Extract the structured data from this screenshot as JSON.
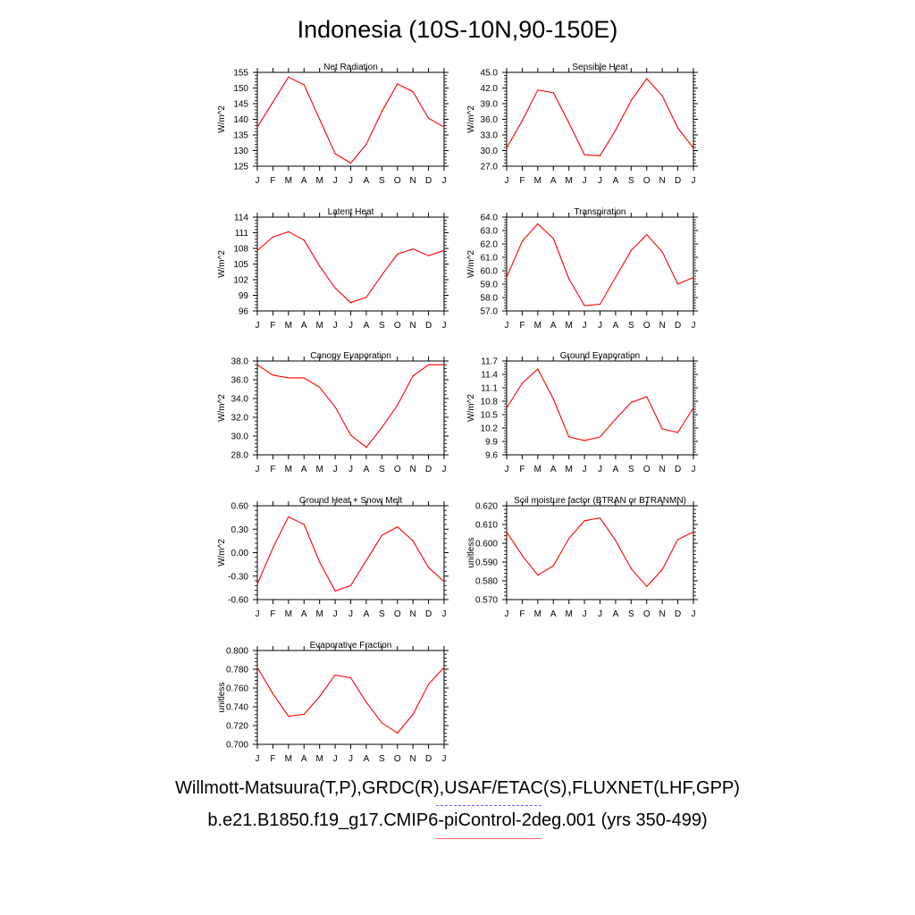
{
  "title": "Indonesia (10S-10N,90-150E)",
  "months": [
    "J",
    "F",
    "M",
    "A",
    "M",
    "J",
    "J",
    "A",
    "S",
    "O",
    "N",
    "D",
    "J"
  ],
  "footer": {
    "obs_sources": "Willmott-Matsuura(T,P),GRDC(R),USAF/ETAC(S),FLUXNET(LHF,GPP)",
    "model_case": "b.e21.B1850.f19_g17.CMIP6-piControl-2deg.001 (yrs 350-499)"
  },
  "colors": {
    "series": "#ff0000",
    "obs_legend": "#6666ff",
    "model_legend": "#ff6666"
  },
  "chart_data": [
    {
      "type": "line",
      "title": "Net Radiation",
      "ylabel": "W/m^2",
      "ylim": [
        125,
        155
      ],
      "yticks": [
        "125",
        "130",
        "135",
        "140",
        "145",
        "150",
        "155"
      ],
      "values": [
        137.5,
        145.5,
        153.5,
        151,
        140,
        129,
        126,
        132,
        142.5,
        151.3,
        148.8,
        140.3,
        137.5
      ]
    },
    {
      "type": "line",
      "title": "Sensible Heat",
      "ylabel": "W/m^2",
      "ylim": [
        27,
        45
      ],
      "yticks": [
        "27.0",
        "30.0",
        "33.0",
        "36.0",
        "39.0",
        "42.0",
        "45.0"
      ],
      "values": [
        30.5,
        35.7,
        41.6,
        41.1,
        35.3,
        29.2,
        29.0,
        33.9,
        39.6,
        43.8,
        40.5,
        34.3,
        30.5
      ]
    },
    {
      "type": "line",
      "title": "Latent Heat",
      "ylabel": "W/m^2",
      "ylim": [
        96,
        114
      ],
      "yticks": [
        "96",
        "99",
        "102",
        "105",
        "108",
        "111",
        "114"
      ],
      "values": [
        107.6,
        110.2,
        111.2,
        109.6,
        104.6,
        100.4,
        97.6,
        98.6,
        102.9,
        106.9,
        107.9,
        106.6,
        107.6
      ]
    },
    {
      "type": "line",
      "title": "Transpiration",
      "ylabel": "W/m^2",
      "ylim": [
        57,
        64
      ],
      "yticks": [
        "57.0",
        "58.0",
        "59.0",
        "60.0",
        "61.0",
        "62.0",
        "63.0",
        "64.0"
      ],
      "values": [
        59.5,
        62.2,
        63.5,
        62.4,
        59.4,
        57.4,
        57.5,
        59.5,
        61.5,
        62.7,
        61.4,
        59.0,
        59.5
      ]
    },
    {
      "type": "line",
      "title": "Canopy Evaporation",
      "ylabel": "W/m^2",
      "ylim": [
        28,
        38
      ],
      "yticks": [
        "28.0",
        "30.0",
        "32.0",
        "34.0",
        "36.0",
        "38.0"
      ],
      "values": [
        37.6,
        36.5,
        36.2,
        36.2,
        35.2,
        33.1,
        30.1,
        28.8,
        30.9,
        33.3,
        36.4,
        37.6,
        37.6
      ]
    },
    {
      "type": "line",
      "title": "Ground Evaporation",
      "ylabel": "W/m^2",
      "ylim": [
        9.6,
        11.7
      ],
      "yticks": [
        "9.6",
        "9.9",
        "10.2",
        "10.5",
        "10.8",
        "11.1",
        "11.4",
        "11.7"
      ],
      "values": [
        10.65,
        11.2,
        11.52,
        10.85,
        10.0,
        9.92,
        10.0,
        10.4,
        10.77,
        10.9,
        10.18,
        10.1,
        10.65
      ]
    },
    {
      "type": "line",
      "title": "Ground Heat + Snow Melt",
      "ylabel": "W/m^2",
      "ylim": [
        -0.6,
        0.6
      ],
      "yticks": [
        "-0.60",
        "-0.30",
        "0.00",
        "0.30",
        "0.60"
      ],
      "values": [
        -0.4,
        0.06,
        0.46,
        0.36,
        -0.12,
        -0.49,
        -0.42,
        -0.1,
        0.22,
        0.33,
        0.15,
        -0.19,
        -0.37
      ]
    },
    {
      "type": "line",
      "title": "Soil moisture factor (BTRAN or BTRANMN)",
      "ylabel": "unitless",
      "ylim": [
        0.57,
        0.62
      ],
      "yticks": [
        "0.570",
        "0.580",
        "0.590",
        "0.600",
        "0.610",
        "0.620"
      ],
      "values": [
        0.606,
        0.5935,
        0.583,
        0.588,
        0.6025,
        0.612,
        0.6135,
        0.6015,
        0.5865,
        0.577,
        0.586,
        0.602,
        0.606
      ]
    },
    {
      "type": "line",
      "title": "Evaporative Fraction",
      "ylabel": "unitless",
      "ylim": [
        0.7,
        0.8
      ],
      "yticks": [
        "0.700",
        "0.720",
        "0.740",
        "0.760",
        "0.780",
        "0.800"
      ],
      "values": [
        0.782,
        0.754,
        0.73,
        0.732,
        0.751,
        0.774,
        0.771,
        0.745,
        0.723,
        0.712,
        0.732,
        0.764,
        0.782
      ]
    }
  ]
}
